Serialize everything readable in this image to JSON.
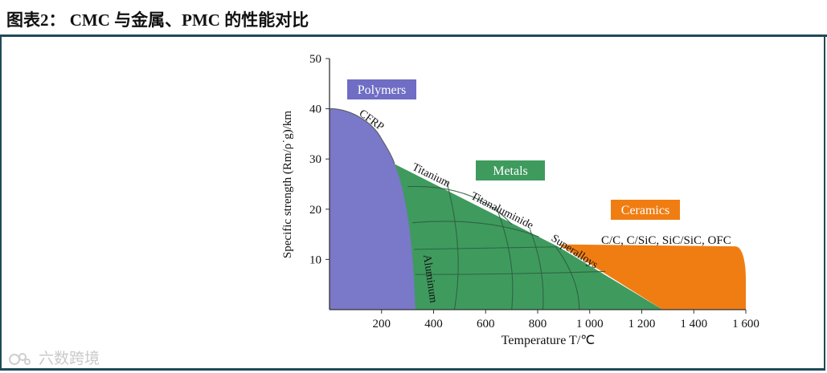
{
  "title": "图表2：  CMC 与金属、PMC 的性能对比",
  "watermark": "六数跨境",
  "chart_data": {
    "type": "area",
    "xlabel": "Temperature T/℃",
    "ylabel": "Specific strength (Rm/ρ˙g)/km",
    "xlim": [
      0,
      1600
    ],
    "ylim": [
      0,
      50
    ],
    "x_ticks": [
      "200",
      "400",
      "600",
      "800",
      "1 000",
      "1 200",
      "1 400",
      "1 600"
    ],
    "x_tick_values": [
      200,
      400,
      600,
      800,
      1000,
      1200,
      1400,
      1600
    ],
    "y_ticks": [
      "10",
      "20",
      "30",
      "40",
      "50"
    ],
    "y_tick_values": [
      10,
      20,
      30,
      40,
      50
    ],
    "regions": [
      {
        "name": "Ceramics",
        "color": "#f07d12",
        "boundary": [
          [
            880,
            13
          ],
          [
            1560,
            12.5
          ],
          [
            1600,
            6
          ],
          [
            1600,
            0
          ],
          [
            1280,
            0
          ]
        ]
      },
      {
        "name": "Metals",
        "color": "#3f9a5e",
        "boundary": [
          [
            250,
            29
          ],
          [
            880,
            12.5
          ],
          [
            1280,
            0
          ],
          [
            330,
            0
          ]
        ]
      },
      {
        "name": "Polymers",
        "color": "#7a78c8",
        "boundary": [
          [
            0,
            40
          ],
          [
            100,
            39
          ],
          [
            200,
            34
          ],
          [
            250,
            29
          ],
          [
            300,
            20
          ],
          [
            330,
            0
          ],
          [
            0,
            0
          ]
        ]
      }
    ],
    "region_labels": [
      "Polymers",
      "Metals",
      "Ceramics"
    ],
    "curve_labels": [
      "CFRP",
      "Titanium",
      "Titanaluminide",
      "Superalloys",
      "Aluminum",
      "C/C, C/SiC, SiC/SiC, OFC"
    ]
  }
}
